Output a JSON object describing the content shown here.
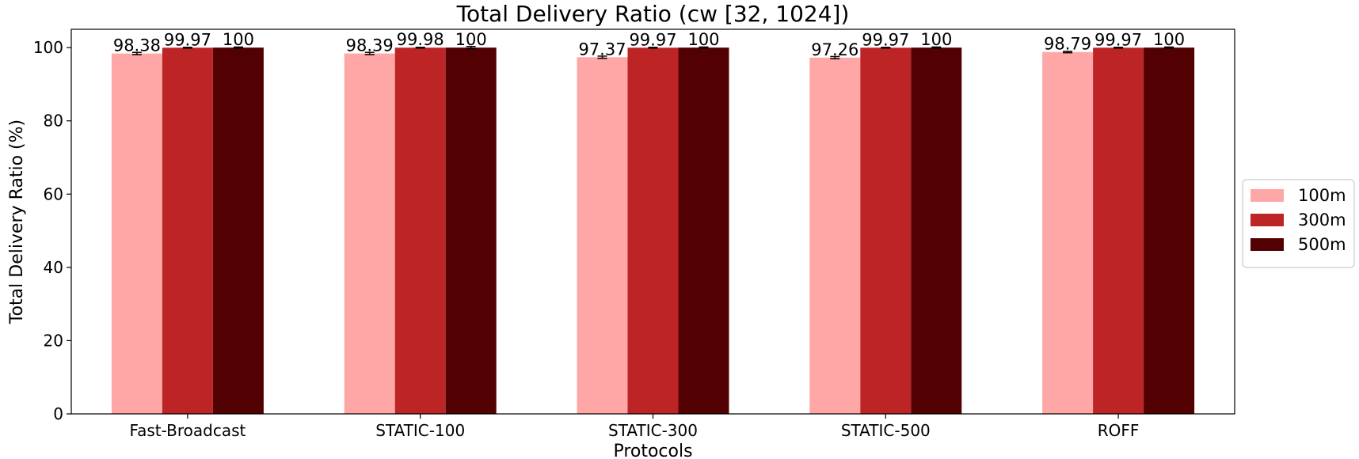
{
  "chart_data": {
    "type": "bar",
    "title": "Total Delivery Ratio (cw [32, 1024])",
    "xlabel": "Protocols",
    "ylabel": "Total Delivery Ratio (%)",
    "ylim": [
      0,
      105
    ],
    "yticks": [
      0,
      20,
      40,
      60,
      80,
      100
    ],
    "grid": false,
    "legend_position": "right",
    "categories": [
      "Fast-Broadcast",
      "STATIC-100",
      "STATIC-300",
      "STATIC-500",
      "ROFF"
    ],
    "series": [
      {
        "name": "100m",
        "color": "#fea7a6",
        "values": [
          98.38,
          98.39,
          97.37,
          97.26,
          98.79
        ],
        "labels": [
          "98.38",
          "98.39",
          "97.37",
          "97.26",
          "98.79"
        ],
        "errors": [
          0.3,
          0.3,
          0.3,
          0.3,
          0.2
        ]
      },
      {
        "name": "300m",
        "color": "#bd2426",
        "values": [
          99.97,
          99.98,
          99.97,
          99.97,
          99.97
        ],
        "labels": [
          "99.97",
          "99.98",
          "99.97",
          "99.97",
          "99.97"
        ],
        "errors": [
          0.1,
          0.1,
          0.1,
          0.1,
          0.1
        ]
      },
      {
        "name": "500m",
        "color": "#520001",
        "values": [
          100,
          100,
          100,
          100,
          100
        ],
        "labels": [
          "100",
          "100",
          "100",
          "100",
          "100"
        ],
        "errors": [
          0.15,
          0.3,
          0.15,
          0.15,
          0.15
        ]
      }
    ]
  }
}
